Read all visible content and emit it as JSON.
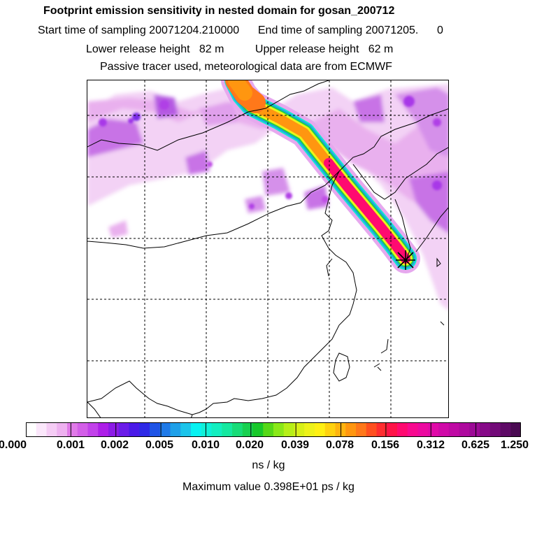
{
  "header": {
    "title": "Footprint emission sensitivity in nested domain for gosan_200712",
    "line2": "Start time of sampling 20071204.210000      End time of sampling 20071205.      0",
    "line3": "Lower release height   82 m          Upper release height   62 m",
    "line4": "Passive tracer used, meteorological data are from ECMWF"
  },
  "colorbar": {
    "tick_labels": [
      "0.000",
      "0.001",
      "0.002",
      "0.005",
      "0.010",
      "0.020",
      "0.039",
      "0.078",
      "0.156",
      "0.312",
      "0.625",
      "1.250"
    ],
    "colors": [
      "#ffffff",
      "#fbe7fb",
      "#f5ccf5",
      "#eeb1f0",
      "#e07ae8",
      "#d35fe8",
      "#c242ea",
      "#ad1fe8",
      "#8c1ae6",
      "#6b1ce8",
      "#4a1ae8",
      "#2f2ae6",
      "#1f54e6",
      "#1f7ae8",
      "#1fa0e8",
      "#1cc4ea",
      "#08f2f2",
      "#10f0d8",
      "#14eec0",
      "#16e8a0",
      "#18dc78",
      "#18d050",
      "#18c82a",
      "#56d818",
      "#8ae818",
      "#b6ef18",
      "#d8f018",
      "#eef21a",
      "#fff014",
      "#ffd210",
      "#ffb410",
      "#ff9610",
      "#ff781a",
      "#ff5020",
      "#ff2e30",
      "#ff1448",
      "#ff0a70",
      "#f80a90",
      "#ec0aa0",
      "#e00aa8",
      "#d00aa8",
      "#bf0aa4",
      "#ae0a9e",
      "#9c0a96",
      "#860a88",
      "#720a78",
      "#5e0a66",
      "#4a0a52"
    ],
    "units": "ns / kg"
  },
  "max_value": "Maximum value  0.398E+01 ps / kg",
  "map": {
    "receptor": "gosan",
    "receptor_marker": "star-marker"
  }
}
